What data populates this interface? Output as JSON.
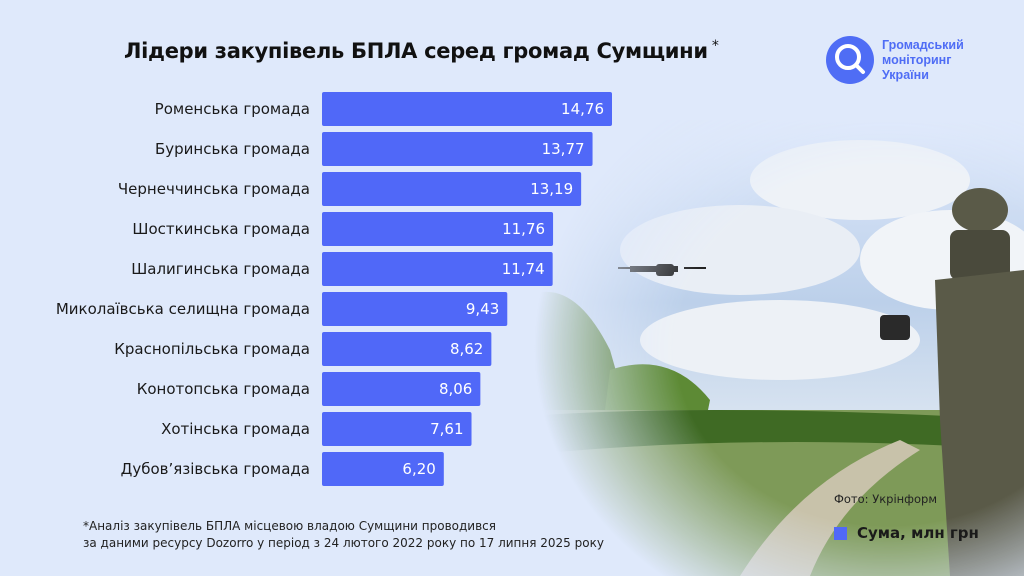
{
  "title": "Лідери закупівель БПЛА серед громад Сумщини",
  "title_mark": "*",
  "logo": {
    "lines": [
      "Громадський",
      "моніторинг",
      "України"
    ],
    "icon": "magnifier-icon",
    "color": "#4f6df5"
  },
  "photo_credit": "Фото: Укрінформ",
  "footnote": [
    "*Аналіз закупівель БПЛА місцевою владою Сумщини проводився",
    "за даними ресурсу Dozorro у період з 24 лютого 2022 року по 17 липня 2025 року"
  ],
  "chart_data": {
    "type": "bar",
    "orientation": "horizontal",
    "categories": [
      "Роменська громада",
      "Буринська громада",
      "Чернеччинська громада",
      "Шосткинська громада",
      "Шалигинська громада",
      "Миколаївська селищна громада",
      "Краснопільська громада",
      "Конотопська громада",
      "Хотінська громада",
      "Дубов’язівська громада"
    ],
    "series": [
      {
        "name": "Сума, млн грн",
        "values": [
          14.76,
          13.77,
          13.19,
          11.76,
          11.74,
          9.43,
          8.62,
          8.06,
          7.61,
          6.2
        ]
      }
    ],
    "value_labels": [
      "14,76",
      "13,77",
      "13,19",
      "11,76",
      "11,74",
      "9,43",
      "8,62",
      "8,06",
      "7,61",
      "6,20"
    ],
    "color": "#5068f8",
    "legend_position": "bottom-right",
    "grid": false
  }
}
